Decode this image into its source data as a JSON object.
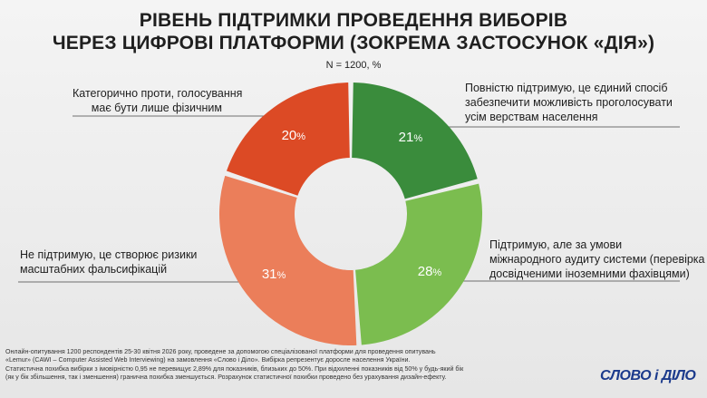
{
  "title": {
    "line1": "РІВЕНЬ ПІДТРИМКИ ПРОВЕДЕННЯ ВИБОРІВ",
    "line2": "ЧЕРЕЗ ЦИФРОВІ ПЛАТФОРМИ (ЗОКРЕМА ЗАСТОСУНОК «ДІЯ»)"
  },
  "subtitle": "N = 1200, %",
  "chart_data": {
    "type": "pie",
    "variant": "donut",
    "title": "РІВЕНЬ ПІДТРИМКИ ПРОВЕДЕННЯ ВИБОРІВ ЧЕРЕЗ ЦИФРОВІ ПЛАТФОРМИ (ЗОКРЕМА ЗАСТОСУНОК «ДІЯ»)",
    "slices": [
      {
        "label": "Повністю підтримую, це єдиний спосіб забезпечити можливість проголосувати усім верствам населення",
        "value": 21,
        "color": "#3a8c3c"
      },
      {
        "label": "Підтримую, але за умови міжнародного аудиту системи (перевірка досвідченими іноземними фахівцями)",
        "value": 28,
        "color": "#7bbd4f"
      },
      {
        "label": "Не підтримую, це створює ризики масштабних фальсифікацій",
        "value": 31,
        "color": "#eb7e5a"
      },
      {
        "label": "Категорично проти, голосування має бути лише фізичним",
        "value": 20,
        "color": "#dc4a25"
      }
    ]
  },
  "labels": {
    "s1": [
      "Повністю підтримую, це єдиний спосіб",
      "забезпечити можливість проголосувати",
      "усім верствам населення"
    ],
    "s2": [
      "Підтримую, але за умови",
      "міжнародного аудиту системи (перевірка",
      "досвідченими іноземними фахівцями)"
    ],
    "s3": [
      "Не підтримую, це створює ризики",
      "масштабних фальсифікацій"
    ],
    "s4": [
      "Категорично проти, голосування",
      "має бути лише фізичним"
    ]
  },
  "footer": [
    "Онлайн-опитування 1200 респондентів 25-30 квітня 2026 року, проведене за допомогою спеціалізованої платформи для проведення опитувань",
    "«Lemur» (CAWI – Computer Assisted Web Interviewing) на замовлення «Слово і Діло». Вибірка репрезентує доросле населення України.",
    "Статистична похибка вибірки з імовірністю 0,95 не перевищує 2,89% для показників, близьких до 50%. При відхиленні показників від 50% у будь-який бік",
    "(як у бік збільшення, так і зменшення) гранична похибка зменшується. Розрахунок статистичної похибки проведено без урахування дизайн-ефекту."
  ],
  "logo": "СЛОВО і ДІЛО"
}
